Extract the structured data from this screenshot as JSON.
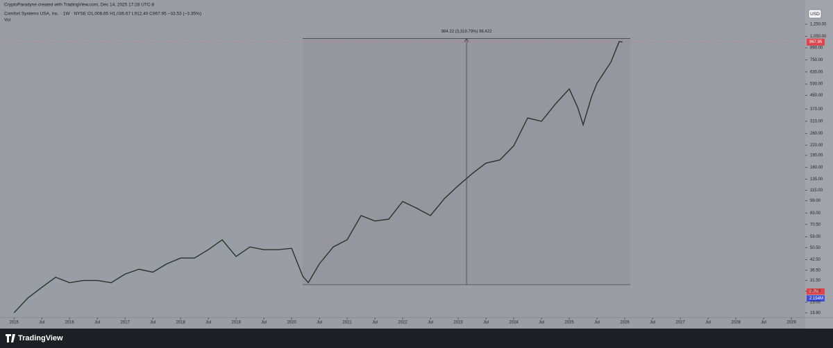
{
  "header": {
    "credit": "CryptoParadyne created with TradingView.com, Dec 14, 2025 17:28 UTC-8",
    "symbol_line": "Comfort Systems USA, Inc. · 1W · NYSE  O1,008.65 H1,036.67 L912.40 C967.95 −33.53 (−3.35%)",
    "volume_label": "Vol",
    "currency": "USD"
  },
  "volume_tags": {
    "volume": "2.7M",
    "volume_ma": "2.154M"
  },
  "footer": {
    "brand": "TradingView"
  },
  "chart_data": {
    "type": "line",
    "log_scale": true,
    "grid": false,
    "series": [
      {
        "name": "Comfort Systems USA, Inc.",
        "color": "#26332c",
        "x": [
          2015.0,
          2015.25,
          2015.5,
          2015.75,
          2016.0,
          2016.25,
          2016.5,
          2016.75,
          2017.0,
          2017.25,
          2017.5,
          2017.75,
          2018.0,
          2018.25,
          2018.5,
          2018.75,
          2019.0,
          2019.25,
          2019.5,
          2019.75,
          2020.0,
          2020.2,
          2020.3,
          2020.5,
          2020.75,
          2021.0,
          2021.25,
          2021.5,
          2021.75,
          2022.0,
          2022.25,
          2022.5,
          2022.75,
          2023.0,
          2023.25,
          2023.5,
          2023.75,
          2024.0,
          2024.25,
          2024.5,
          2024.75,
          2025.0,
          2025.15,
          2025.25,
          2025.4,
          2025.5,
          2025.75,
          2025.9,
          2025.96
        ],
        "values": [
          19.8,
          24.5,
          28.5,
          33,
          30.5,
          31.5,
          31.5,
          30.5,
          34.5,
          37,
          35.5,
          40,
          43.5,
          43.5,
          49,
          56.5,
          44.5,
          51,
          49,
          49,
          50,
          33.5,
          30.5,
          40,
          51,
          56.5,
          80,
          74,
          76,
          98,
          89,
          80,
          102,
          123,
          146,
          170,
          178,
          218,
          325,
          310,
          397,
          494,
          379,
          295,
          440,
          536,
          725,
          975,
          967.95
        ]
      }
    ],
    "last_price": 967.95,
    "measure": {
      "label": "984.22 (3,319.79%) 98,422",
      "x": [
        2020.2,
        2026.1
      ],
      "y": [
        29.6,
        1020
      ]
    },
    "xlim": [
      2014.81,
      2029.25
    ],
    "xticks": [
      {
        "value": 2015,
        "label": "2015"
      },
      {
        "value": 2015.5,
        "label": "Jul"
      },
      {
        "value": 2016,
        "label": "2016"
      },
      {
        "value": 2016.5,
        "label": "Jul"
      },
      {
        "value": 2017,
        "label": "2017"
      },
      {
        "value": 2017.5,
        "label": "Jul"
      },
      {
        "value": 2018,
        "label": "2018"
      },
      {
        "value": 2018.5,
        "label": "Jul"
      },
      {
        "value": 2019,
        "label": "2019"
      },
      {
        "value": 2019.5,
        "label": "Jul"
      },
      {
        "value": 2020,
        "label": "2020"
      },
      {
        "value": 2020.5,
        "label": "Jul"
      },
      {
        "value": 2021,
        "label": "2021"
      },
      {
        "value": 2021.5,
        "label": "Jul"
      },
      {
        "value": 2022,
        "label": "2022"
      },
      {
        "value": 2022.5,
        "label": "Jul"
      },
      {
        "value": 2023,
        "label": "2023"
      },
      {
        "value": 2023.5,
        "label": "Jul"
      },
      {
        "value": 2024,
        "label": "2024"
      },
      {
        "value": 2024.5,
        "label": "Jul"
      },
      {
        "value": 2025,
        "label": "2025"
      },
      {
        "value": 2025.5,
        "label": "Jul"
      },
      {
        "value": 2026,
        "label": "2026"
      },
      {
        "value": 2026.5,
        "label": "Jul"
      },
      {
        "value": 2027,
        "label": "2027"
      },
      {
        "value": 2027.5,
        "label": "Jul"
      },
      {
        "value": 2028,
        "label": "2028"
      },
      {
        "value": 2028.5,
        "label": "Jul"
      },
      {
        "value": 2029,
        "label": "2029"
      }
    ],
    "ylim": [
      18.5,
      1340
    ],
    "yticks": [
      {
        "value": 19.8,
        "label": "19.80"
      },
      {
        "value": 23,
        "label": "23.00"
      },
      {
        "value": 27,
        "label": "27.00"
      },
      {
        "value": 31.5,
        "label": "31.50"
      },
      {
        "value": 36.5,
        "label": "36.50"
      },
      {
        "value": 42.5,
        "label": "42.50"
      },
      {
        "value": 50.5,
        "label": "50.50"
      },
      {
        "value": 59,
        "label": "59.00"
      },
      {
        "value": 70.5,
        "label": "70.50"
      },
      {
        "value": 83,
        "label": "83.00"
      },
      {
        "value": 99,
        "label": "99.00"
      },
      {
        "value": 115,
        "label": "115.00"
      },
      {
        "value": 135,
        "label": "135.00"
      },
      {
        "value": 160,
        "label": "160.00"
      },
      {
        "value": 190,
        "label": "190.00"
      },
      {
        "value": 220,
        "label": "220.00"
      },
      {
        "value": 260,
        "label": "260.00"
      },
      {
        "value": 310,
        "label": "310.00"
      },
      {
        "value": 370,
        "label": "370.00"
      },
      {
        "value": 450,
        "label": "450.00"
      },
      {
        "value": 530,
        "label": "530.00"
      },
      {
        "value": 630,
        "label": "630.00"
      },
      {
        "value": 750,
        "label": "750.00"
      },
      {
        "value": 890,
        "label": "890.00"
      },
      {
        "value": 1050,
        "label": "1,050.00"
      },
      {
        "value": 1250,
        "label": "1,250.00"
      }
    ]
  }
}
